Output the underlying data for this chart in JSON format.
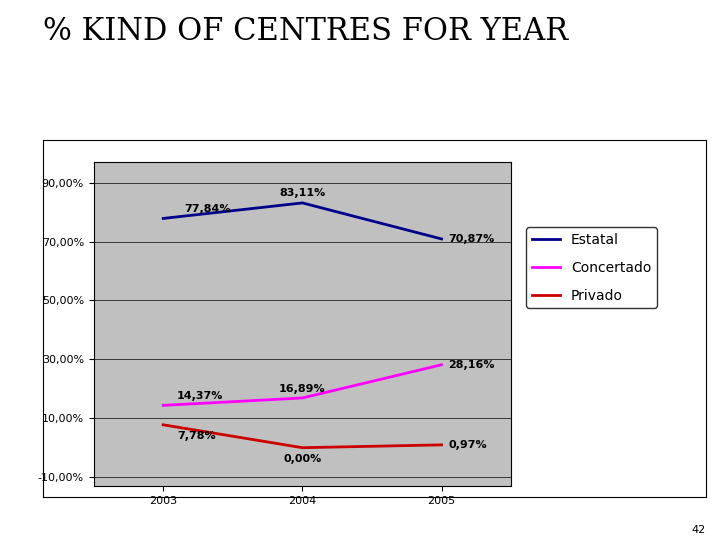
{
  "title": "% KIND OF CENTRES FOR YEAR",
  "years": [
    2003,
    2004,
    2005
  ],
  "estatal": [
    77.84,
    83.11,
    70.87
  ],
  "concertado": [
    14.37,
    16.89,
    28.16
  ],
  "privado": [
    7.78,
    0.0,
    0.97
  ],
  "estatal_labels": [
    "77,84%",
    "83,11%",
    "70,87%"
  ],
  "concertado_labels": [
    "14,37%",
    "16,89%",
    "28,16%"
  ],
  "privado_labels": [
    "7,78%",
    "0,00%",
    "0,97%"
  ],
  "estatal_color": "#00008B",
  "concertado_color": "#FF00FF",
  "privado_color": "#CC0000",
  "yticks": [
    -10,
    10,
    30,
    50,
    70,
    90
  ],
  "ytick_labels": [
    "-10,00%",
    "10,00%",
    "30,00%",
    "50,00%",
    "70,00%",
    "90,00%"
  ],
  "bg_color": "#C0C0C0",
  "fig_bg": "#FFFFFF",
  "legend_labels": [
    "Estatal",
    "Concertado",
    "Privado"
  ],
  "page_number": "42",
  "title_fontsize": 22,
  "label_fontsize": 8,
  "tick_fontsize": 8,
  "legend_fontsize": 10
}
